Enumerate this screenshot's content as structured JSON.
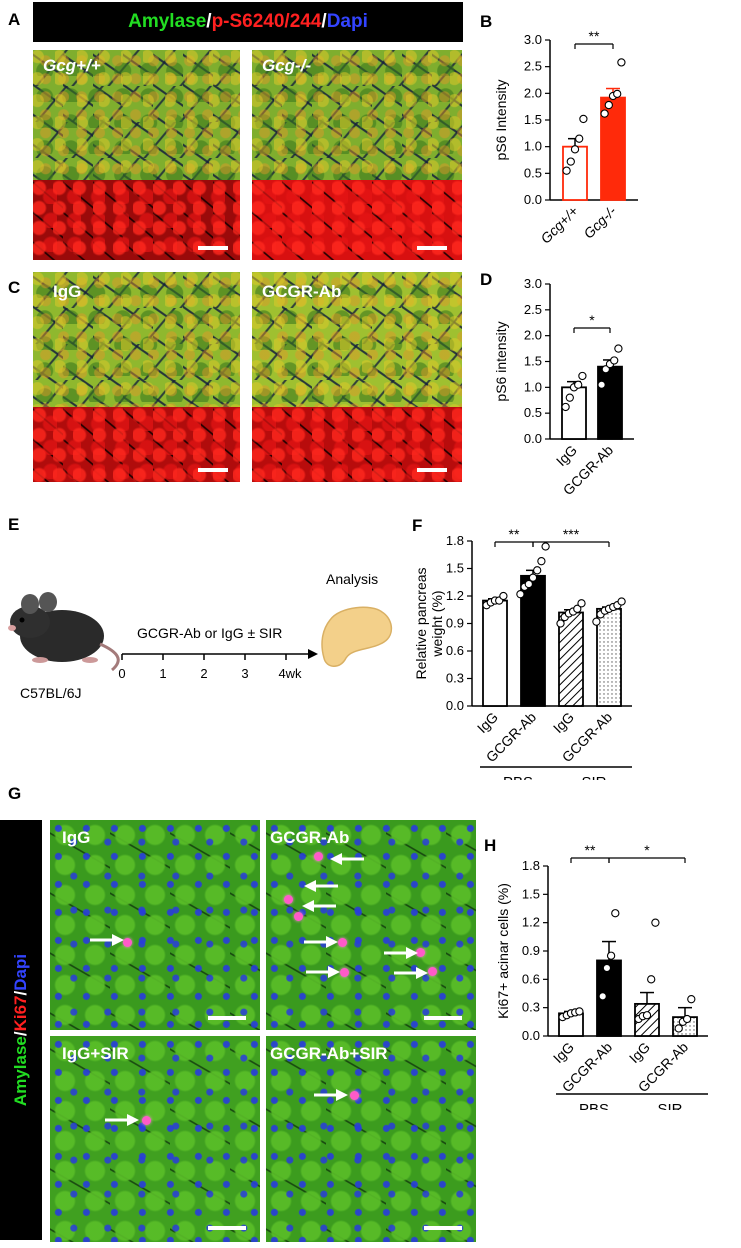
{
  "figure": {
    "panel_letters": [
      "A",
      "B",
      "C",
      "D",
      "E",
      "F",
      "G",
      "H"
    ],
    "panelA": {
      "stain_parts": [
        {
          "text": "Amylase",
          "color": "#22dd22"
        },
        {
          "text": "/",
          "color": "#ffffff"
        },
        {
          "text": "p-S6240/244",
          "color": "#ff2020"
        },
        {
          "text": "/",
          "color": "#ffffff"
        },
        {
          "text": "Dapi",
          "color": "#3344ff"
        }
      ],
      "left_label": "Gcg+/+",
      "right_label": "Gcg-/-"
    },
    "panelC": {
      "left_label": "IgG",
      "right_label": "GCGR-Ab"
    },
    "panelE": {
      "mouse_label": "C57BL/6J",
      "treatment": "GCGR-Ab or IgG ± SIR",
      "analysis": "Analysis",
      "ticks": [
        "0",
        "1",
        "2",
        "3",
        "4wk"
      ]
    },
    "panelG": {
      "side_label_parts": [
        {
          "text": "Amylase",
          "color": "#22dd22"
        },
        {
          "text": "/",
          "color": "#ffffff"
        },
        {
          "text": "Ki67",
          "color": "#ff2020"
        },
        {
          "text": "/",
          "color": "#ffffff"
        },
        {
          "text": "Dapi",
          "color": "#3344ff"
        }
      ],
      "labels": [
        "IgG",
        "GCGR-Ab",
        "IgG+SIR",
        "GCGR-Ab+SIR"
      ]
    }
  },
  "chart_data": [
    {
      "panel": "B",
      "type": "bar",
      "ylabel": "pS6 Intensity",
      "ylim": [
        0,
        3.0
      ],
      "yticks": [
        "0.0",
        "0.5",
        "1.0",
        "1.5",
        "2.0",
        "2.5",
        "3.0"
      ],
      "categories": [
        "Gcg+/+",
        "Gcg-/-"
      ],
      "values": [
        1.0,
        1.92
      ],
      "errors": [
        0.15,
        0.17
      ],
      "points": [
        [
          0.55,
          0.72,
          0.95,
          1.15,
          1.52
        ],
        [
          1.62,
          1.78,
          1.95,
          1.99,
          2.58
        ]
      ],
      "colors": [
        "#ffffff",
        "#ff2a0a"
      ],
      "edge": [
        "#ff2a0a",
        "#ff2a0a"
      ],
      "significance": [
        {
          "from": 0,
          "to": 1,
          "text": "**"
        }
      ]
    },
    {
      "panel": "D",
      "type": "bar",
      "ylabel": "pS6 intensity",
      "ylim": [
        0,
        3.0
      ],
      "yticks": [
        "0.0",
        "0.5",
        "1.0",
        "1.5",
        "2.0",
        "2.5",
        "3.0"
      ],
      "categories": [
        "IgG",
        "GCGR-Ab"
      ],
      "values": [
        1.0,
        1.4
      ],
      "errors": [
        0.11,
        0.13
      ],
      "points": [
        [
          0.62,
          0.8,
          1.0,
          1.05,
          1.22
        ],
        [
          1.05,
          1.35,
          1.45,
          1.52,
          1.75
        ]
      ],
      "colors": [
        "#ffffff",
        "#000000"
      ],
      "edge": [
        "#000000",
        "#000000"
      ],
      "significance": [
        {
          "from": 0,
          "to": 1,
          "text": "*"
        }
      ]
    },
    {
      "panel": "F",
      "type": "bar",
      "ylabel": "Relative pancreas weight (%)",
      "ylim": [
        0,
        1.8
      ],
      "yticks": [
        "0.0",
        "0.3",
        "0.6",
        "0.9",
        "1.2",
        "1.5",
        "1.8"
      ],
      "categories": [
        "IgG",
        "GCGR-Ab",
        "IgG",
        "GCGR-Ab"
      ],
      "groups": [
        "PBS",
        "SIR"
      ],
      "values": [
        1.15,
        1.42,
        1.02,
        1.06
      ],
      "errors": [
        0.02,
        0.06,
        0.03,
        0.02
      ],
      "points": [
        [
          1.1,
          1.13,
          1.15,
          1.15,
          1.2
        ],
        [
          1.22,
          1.3,
          1.33,
          1.4,
          1.48,
          1.58,
          1.74
        ],
        [
          0.9,
          0.97,
          1.01,
          1.03,
          1.06,
          1.12
        ],
        [
          0.92,
          1.0,
          1.04,
          1.06,
          1.08,
          1.1,
          1.14
        ]
      ],
      "fills": [
        "white",
        "black",
        "hatch",
        "dots"
      ],
      "significance": [
        {
          "from": 0,
          "to": 1,
          "text": "**"
        },
        {
          "from": 1,
          "to": 3,
          "text": "***"
        }
      ]
    },
    {
      "panel": "H",
      "type": "bar",
      "ylabel": "Ki67+ acinar cells (%)",
      "ylim": [
        0,
        1.8
      ],
      "yticks": [
        "0.0",
        "0.3",
        "0.6",
        "0.9",
        "1.2",
        "1.5",
        "1.8"
      ],
      "categories": [
        "IgG",
        "GCGR-Ab",
        "IgG",
        "GCGR-Ab"
      ],
      "groups": [
        "PBS",
        "SIR"
      ],
      "values": [
        0.24,
        0.8,
        0.34,
        0.2
      ],
      "errors": [
        0.02,
        0.2,
        0.12,
        0.1
      ],
      "points": [
        [
          0.2,
          0.22,
          0.24,
          0.25,
          0.26
        ],
        [
          0.42,
          0.72,
          0.85,
          1.3
        ],
        [
          0.18,
          0.21,
          0.22,
          0.6,
          1.2
        ],
        [
          0.08,
          0.15,
          0.18,
          0.39
        ]
      ],
      "fills": [
        "white",
        "black",
        "hatch",
        "dots"
      ],
      "significance": [
        {
          "from": 0,
          "to": 1,
          "text": "**"
        },
        {
          "from": 1,
          "to": 3,
          "text": "*"
        }
      ]
    }
  ]
}
